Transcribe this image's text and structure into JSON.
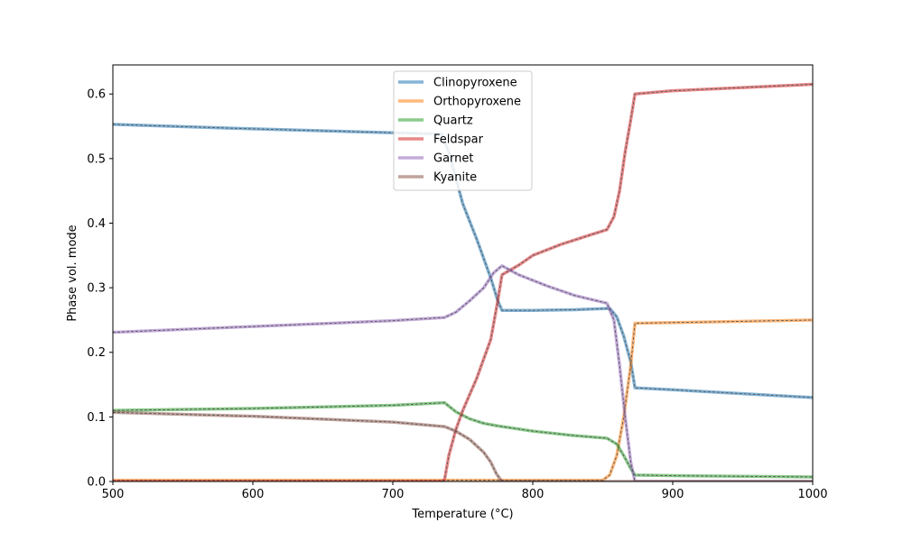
{
  "chart_data": {
    "type": "line",
    "xlabel": "Temperature (°C)",
    "ylabel": "Phase vol. mode",
    "xlim": [
      500,
      1000
    ],
    "ylim": [
      0,
      0.645
    ],
    "xticks": [
      500,
      600,
      700,
      800,
      900,
      1000
    ],
    "yticks": [
      0.0,
      0.1,
      0.2,
      0.3,
      0.4,
      0.5,
      0.6
    ],
    "ytick_labels": [
      "0.0",
      "0.1",
      "0.2",
      "0.3",
      "0.4",
      "0.5",
      "0.6"
    ],
    "grid": false,
    "legend_position": "top-center",
    "series": [
      {
        "name": "Clinopyroxene",
        "color": "#1f77b4",
        "x": [
          500,
          600,
          700,
          735,
          740,
          745,
          750,
          760,
          770,
          775,
          778,
          800,
          830,
          855,
          860,
          865,
          870,
          873,
          900,
          950,
          1000
        ],
        "y": [
          0.553,
          0.546,
          0.54,
          0.538,
          0.51,
          0.47,
          0.43,
          0.375,
          0.315,
          0.28,
          0.265,
          0.265,
          0.266,
          0.268,
          0.255,
          0.225,
          0.185,
          0.145,
          0.142,
          0.136,
          0.13
        ]
      },
      {
        "name": "Orthopyroxene",
        "color": "#ff7f0e",
        "x": [
          500,
          600,
          700,
          800,
          850,
          855,
          860,
          865,
          870,
          873,
          900,
          950,
          1000
        ],
        "y": [
          0.002,
          0.002,
          0.002,
          0.002,
          0.002,
          0.01,
          0.04,
          0.1,
          0.18,
          0.245,
          0.246,
          0.248,
          0.25
        ]
      },
      {
        "name": "Quartz",
        "color": "#2ca02c",
        "x": [
          500,
          600,
          700,
          737,
          745,
          755,
          765,
          775,
          800,
          830,
          853,
          860,
          865,
          870,
          873,
          900,
          950,
          1000
        ],
        "y": [
          0.11,
          0.113,
          0.118,
          0.122,
          0.108,
          0.097,
          0.09,
          0.086,
          0.078,
          0.071,
          0.067,
          0.058,
          0.04,
          0.02,
          0.01,
          0.009,
          0.008,
          0.007
        ]
      },
      {
        "name": "Feldspar",
        "color": "#d62728",
        "x": [
          500,
          600,
          700,
          735,
          737,
          740,
          745,
          750,
          760,
          770,
          775,
          778,
          790,
          800,
          820,
          840,
          853,
          858,
          862,
          866,
          870,
          873,
          900,
          950,
          1000
        ],
        "y": [
          0.0,
          0.0,
          0.0,
          0.0,
          0.003,
          0.04,
          0.08,
          0.11,
          0.16,
          0.22,
          0.28,
          0.32,
          0.335,
          0.35,
          0.367,
          0.381,
          0.39,
          0.41,
          0.45,
          0.51,
          0.56,
          0.6,
          0.605,
          0.61,
          0.615
        ]
      },
      {
        "name": "Garnet",
        "color": "#9467bd",
        "x": [
          500,
          600,
          700,
          737,
          745,
          755,
          765,
          772,
          778,
          790,
          810,
          830,
          853,
          858,
          862,
          866,
          870,
          873,
          900,
          1000
        ],
        "y": [
          0.231,
          0.24,
          0.249,
          0.254,
          0.262,
          0.28,
          0.3,
          0.323,
          0.334,
          0.32,
          0.303,
          0.288,
          0.276,
          0.25,
          0.18,
          0.1,
          0.03,
          0.0,
          0.0,
          0.0
        ]
      },
      {
        "name": "Kyanite",
        "color": "#8c564b",
        "x": [
          500,
          600,
          700,
          737,
          745,
          755,
          765,
          770,
          774,
          778,
          800,
          900,
          1000
        ],
        "y": [
          0.107,
          0.101,
          0.092,
          0.085,
          0.078,
          0.065,
          0.045,
          0.03,
          0.012,
          0.0,
          0.0,
          0.0,
          0.0
        ]
      }
    ]
  }
}
